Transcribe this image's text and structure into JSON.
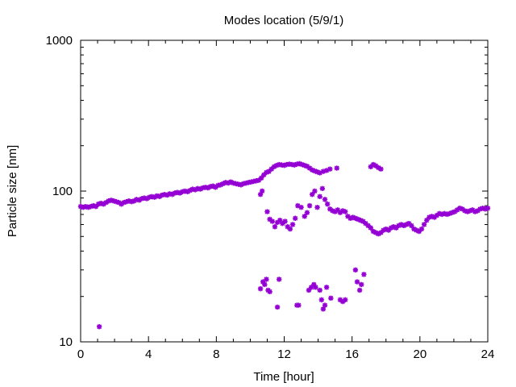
{
  "chart_data": {
    "type": "scatter",
    "title": "Modes location (5/9/1)",
    "xlabel": "Time [hour]",
    "ylabel": "Particle size [nm]",
    "xlim": [
      0,
      24
    ],
    "ylim": [
      10,
      1000
    ],
    "yscale": "log",
    "xticks": [
      0,
      4,
      8,
      12,
      16,
      20,
      24
    ],
    "xtick_labels": [
      "0",
      "4",
      "8",
      "12",
      "16",
      "20",
      "24"
    ],
    "yticks": [
      10,
      100,
      1000
    ],
    "ytick_labels": [
      "10",
      "100",
      "1000"
    ],
    "grid": false,
    "legend": "none",
    "marker_color": "#9400d3",
    "series": [
      {
        "points": [
          [
            0.0,
            79
          ],
          [
            0.15,
            78
          ],
          [
            0.3,
            79
          ],
          [
            0.45,
            78
          ],
          [
            0.6,
            79
          ],
          [
            0.75,
            80
          ],
          [
            0.9,
            79
          ],
          [
            1.05,
            82
          ],
          [
            1.2,
            83
          ],
          [
            1.35,
            82
          ],
          [
            1.5,
            84
          ],
          [
            1.65,
            86
          ],
          [
            1.8,
            87
          ],
          [
            1.95,
            86
          ],
          [
            2.1,
            85
          ],
          [
            2.25,
            84
          ],
          [
            2.4,
            82
          ],
          [
            2.55,
            84
          ],
          [
            2.7,
            85
          ],
          [
            2.85,
            86
          ],
          [
            3.0,
            85
          ],
          [
            3.15,
            86
          ],
          [
            3.3,
            88
          ],
          [
            3.45,
            87
          ],
          [
            3.6,
            89
          ],
          [
            3.75,
            90
          ],
          [
            3.9,
            89
          ],
          [
            4.05,
            91
          ],
          [
            4.2,
            92
          ],
          [
            4.35,
            91
          ],
          [
            4.5,
            93
          ],
          [
            4.65,
            92
          ],
          [
            4.8,
            94
          ],
          [
            4.95,
            95
          ],
          [
            5.1,
            94
          ],
          [
            5.25,
            96
          ],
          [
            5.4,
            95
          ],
          [
            5.55,
            97
          ],
          [
            5.7,
            98
          ],
          [
            5.85,
            97
          ],
          [
            6.0,
            99
          ],
          [
            6.15,
            100
          ],
          [
            6.3,
            99
          ],
          [
            6.45,
            101
          ],
          [
            6.6,
            103
          ],
          [
            6.75,
            102
          ],
          [
            6.9,
            104
          ],
          [
            7.05,
            103
          ],
          [
            7.2,
            105
          ],
          [
            7.35,
            106
          ],
          [
            7.5,
            105
          ],
          [
            7.65,
            107
          ],
          [
            7.8,
            108
          ],
          [
            7.95,
            106
          ],
          [
            8.1,
            109
          ],
          [
            8.25,
            110
          ],
          [
            8.4,
            112
          ],
          [
            8.55,
            114
          ],
          [
            8.7,
            113
          ],
          [
            8.85,
            115
          ],
          [
            9.0,
            113
          ],
          [
            9.15,
            112
          ],
          [
            9.3,
            111
          ],
          [
            9.45,
            110
          ],
          [
            9.6,
            112
          ],
          [
            9.75,
            113
          ],
          [
            9.9,
            114
          ],
          [
            10.05,
            115
          ],
          [
            10.2,
            116
          ],
          [
            10.35,
            117
          ],
          [
            10.5,
            118
          ],
          [
            10.65,
            122
          ],
          [
            10.8,
            128
          ],
          [
            10.95,
            133
          ],
          [
            11.1,
            135
          ],
          [
            11.25,
            140
          ],
          [
            11.4,
            145
          ],
          [
            11.55,
            148
          ],
          [
            11.7,
            150
          ],
          [
            11.85,
            149
          ],
          [
            12.0,
            148
          ],
          [
            12.15,
            150
          ],
          [
            12.3,
            151
          ],
          [
            12.45,
            150
          ],
          [
            12.6,
            149
          ],
          [
            12.75,
            151
          ],
          [
            12.9,
            152
          ],
          [
            13.05,
            150
          ],
          [
            13.2,
            148
          ],
          [
            13.35,
            146
          ],
          [
            13.5,
            142
          ],
          [
            13.65,
            138
          ],
          [
            13.8,
            136
          ],
          [
            13.95,
            134
          ],
          [
            14.1,
            132
          ],
          [
            14.3,
            135
          ],
          [
            14.5,
            137
          ],
          [
            14.7,
            140
          ],
          [
            15.1,
            142
          ],
          [
            17.1,
            145
          ],
          [
            17.25,
            150
          ],
          [
            17.4,
            147
          ],
          [
            17.55,
            143
          ],
          [
            17.7,
            140
          ],
          [
            10.6,
            95
          ],
          [
            10.7,
            100
          ],
          [
            11.0,
            73
          ],
          [
            11.15,
            65
          ],
          [
            11.3,
            63
          ],
          [
            11.45,
            58
          ],
          [
            11.6,
            62
          ],
          [
            11.75,
            64
          ],
          [
            11.9,
            61
          ],
          [
            12.05,
            63
          ],
          [
            12.2,
            58
          ],
          [
            12.35,
            56
          ],
          [
            12.5,
            60
          ],
          [
            12.65,
            66
          ],
          [
            12.8,
            80
          ],
          [
            13.0,
            78
          ],
          [
            13.2,
            68
          ],
          [
            13.35,
            72
          ],
          [
            13.5,
            80
          ],
          [
            13.65,
            95
          ],
          [
            13.8,
            100
          ],
          [
            13.95,
            78
          ],
          [
            14.1,
            92
          ],
          [
            14.25,
            104
          ],
          [
            14.4,
            88
          ],
          [
            14.55,
            82
          ],
          [
            14.7,
            76
          ],
          [
            14.85,
            74
          ],
          [
            15.0,
            73
          ],
          [
            15.15,
            75
          ],
          [
            15.3,
            72
          ],
          [
            15.45,
            74
          ],
          [
            15.6,
            73
          ],
          [
            15.75,
            68
          ],
          [
            15.9,
            66
          ],
          [
            16.05,
            67
          ],
          [
            16.2,
            66
          ],
          [
            16.35,
            65
          ],
          [
            16.5,
            64
          ],
          [
            16.65,
            63
          ],
          [
            16.8,
            61
          ],
          [
            16.95,
            59
          ],
          [
            17.1,
            57
          ],
          [
            17.25,
            54
          ],
          [
            17.4,
            53
          ],
          [
            17.55,
            52
          ],
          [
            17.7,
            53
          ],
          [
            17.85,
            55
          ],
          [
            18.0,
            56
          ],
          [
            18.15,
            55
          ],
          [
            18.3,
            57
          ],
          [
            18.45,
            58
          ],
          [
            18.6,
            57
          ],
          [
            18.75,
            59
          ],
          [
            18.9,
            60
          ],
          [
            19.05,
            59
          ],
          [
            19.2,
            60
          ],
          [
            19.35,
            61
          ],
          [
            19.5,
            59
          ],
          [
            19.65,
            56
          ],
          [
            19.8,
            55
          ],
          [
            19.95,
            54
          ],
          [
            20.1,
            56
          ],
          [
            20.25,
            60
          ],
          [
            20.4,
            64
          ],
          [
            20.55,
            67
          ],
          [
            20.7,
            68
          ],
          [
            20.85,
            67
          ],
          [
            21.0,
            69
          ],
          [
            21.15,
            71
          ],
          [
            21.3,
            70
          ],
          [
            21.45,
            71
          ],
          [
            21.6,
            70
          ],
          [
            21.75,
            71
          ],
          [
            21.9,
            72
          ],
          [
            22.05,
            73
          ],
          [
            22.2,
            75
          ],
          [
            22.35,
            77
          ],
          [
            22.5,
            76
          ],
          [
            22.65,
            74
          ],
          [
            22.8,
            73
          ],
          [
            22.95,
            74
          ],
          [
            23.1,
            75
          ],
          [
            23.25,
            73
          ],
          [
            23.4,
            74
          ],
          [
            23.55,
            76
          ],
          [
            23.7,
            77
          ],
          [
            23.85,
            76
          ],
          [
            24.0,
            77
          ],
          [
            1.1,
            12.6
          ],
          [
            10.6,
            22.5
          ],
          [
            10.75,
            25
          ],
          [
            10.85,
            24
          ],
          [
            10.95,
            26
          ],
          [
            11.05,
            22
          ],
          [
            11.15,
            21.5
          ],
          [
            11.6,
            17
          ],
          [
            11.7,
            26
          ],
          [
            12.75,
            17.5
          ],
          [
            12.85,
            17.5
          ],
          [
            13.45,
            22
          ],
          [
            13.6,
            23
          ],
          [
            13.75,
            24
          ],
          [
            13.85,
            23
          ],
          [
            14.1,
            22
          ],
          [
            14.2,
            19
          ],
          [
            14.3,
            16.5
          ],
          [
            14.4,
            17.5
          ],
          [
            14.5,
            23
          ],
          [
            14.75,
            19.5
          ],
          [
            15.3,
            19
          ],
          [
            15.45,
            18.5
          ],
          [
            15.6,
            19
          ],
          [
            16.2,
            30
          ],
          [
            16.3,
            25
          ],
          [
            16.45,
            22
          ],
          [
            16.55,
            24
          ],
          [
            16.7,
            28
          ]
        ]
      }
    ]
  }
}
